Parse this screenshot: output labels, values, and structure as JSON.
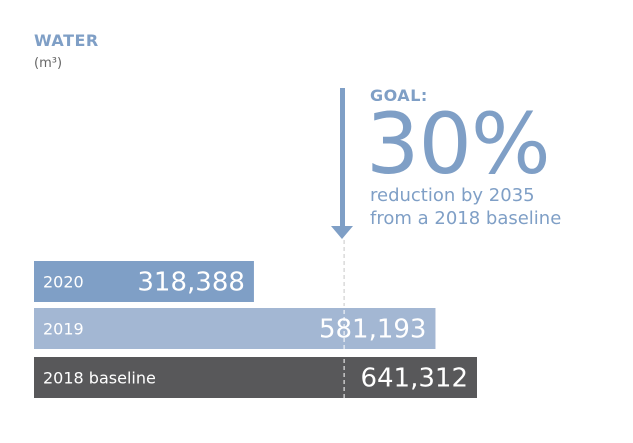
{
  "header": {
    "title": "WATER",
    "unit": "(m³)"
  },
  "goal": {
    "label": "GOAL:",
    "value": "30%",
    "description_line1": "reduction by 2035",
    "description_line2": "from a 2018 baseline"
  },
  "colors": {
    "accent": "#7f9fc6",
    "bar_2020": "#7f9fc6",
    "bar_2019": "#a3b7d3",
    "bar_2018": "#58585a",
    "text_light": "#ffffff"
  },
  "chart_data": {
    "type": "bar",
    "orientation": "horizontal",
    "title": "WATER",
    "unit": "(m³)",
    "categories": [
      "2020",
      "2019",
      "2018 baseline"
    ],
    "values": [
      318388,
      581193,
      641312
    ],
    "value_labels": [
      "318,388",
      "581,193",
      "641,312"
    ],
    "goal_marker_value": 448918,
    "xlim": [
      0,
      641312
    ],
    "grid": false,
    "legend": "none"
  }
}
